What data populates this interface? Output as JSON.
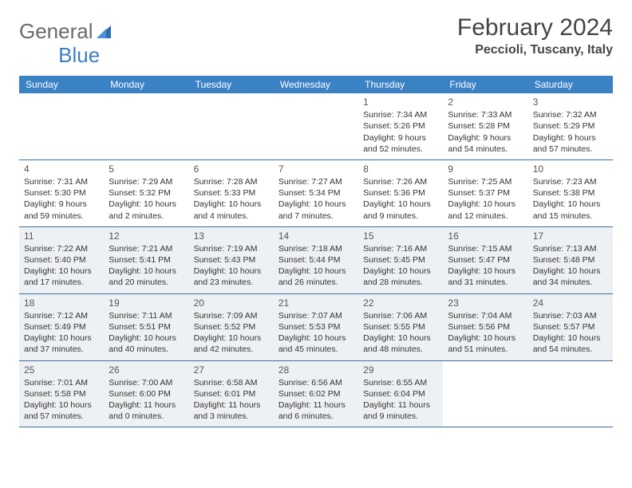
{
  "logo": {
    "text1": "General",
    "text2": "Blue"
  },
  "title": "February 2024",
  "location": "Peccioli, Tuscany, Italy",
  "colors": {
    "header_bg": "#3b82c4",
    "header_text": "#ffffff",
    "border": "#3b6fa0",
    "shaded": "#eef1f3",
    "logo_gray": "#6a6a6a",
    "logo_blue": "#3b7fc4"
  },
  "day_names": [
    "Sunday",
    "Monday",
    "Tuesday",
    "Wednesday",
    "Thursday",
    "Friday",
    "Saturday"
  ],
  "weeks": [
    [
      {
        "blank": true
      },
      {
        "blank": true
      },
      {
        "blank": true
      },
      {
        "blank": true
      },
      {
        "day": "1",
        "sunrise": "Sunrise: 7:34 AM",
        "sunset": "Sunset: 5:26 PM",
        "dl1": "Daylight: 9 hours",
        "dl2": "and 52 minutes."
      },
      {
        "day": "2",
        "sunrise": "Sunrise: 7:33 AM",
        "sunset": "Sunset: 5:28 PM",
        "dl1": "Daylight: 9 hours",
        "dl2": "and 54 minutes."
      },
      {
        "day": "3",
        "sunrise": "Sunrise: 7:32 AM",
        "sunset": "Sunset: 5:29 PM",
        "dl1": "Daylight: 9 hours",
        "dl2": "and 57 minutes."
      }
    ],
    [
      {
        "day": "4",
        "sunrise": "Sunrise: 7:31 AM",
        "sunset": "Sunset: 5:30 PM",
        "dl1": "Daylight: 9 hours",
        "dl2": "and 59 minutes."
      },
      {
        "day": "5",
        "sunrise": "Sunrise: 7:29 AM",
        "sunset": "Sunset: 5:32 PM",
        "dl1": "Daylight: 10 hours",
        "dl2": "and 2 minutes."
      },
      {
        "day": "6",
        "sunrise": "Sunrise: 7:28 AM",
        "sunset": "Sunset: 5:33 PM",
        "dl1": "Daylight: 10 hours",
        "dl2": "and 4 minutes."
      },
      {
        "day": "7",
        "sunrise": "Sunrise: 7:27 AM",
        "sunset": "Sunset: 5:34 PM",
        "dl1": "Daylight: 10 hours",
        "dl2": "and 7 minutes."
      },
      {
        "day": "8",
        "sunrise": "Sunrise: 7:26 AM",
        "sunset": "Sunset: 5:36 PM",
        "dl1": "Daylight: 10 hours",
        "dl2": "and 9 minutes."
      },
      {
        "day": "9",
        "sunrise": "Sunrise: 7:25 AM",
        "sunset": "Sunset: 5:37 PM",
        "dl1": "Daylight: 10 hours",
        "dl2": "and 12 minutes."
      },
      {
        "day": "10",
        "sunrise": "Sunrise: 7:23 AM",
        "sunset": "Sunset: 5:38 PM",
        "dl1": "Daylight: 10 hours",
        "dl2": "and 15 minutes."
      }
    ],
    [
      {
        "day": "11",
        "shaded": true,
        "sunrise": "Sunrise: 7:22 AM",
        "sunset": "Sunset: 5:40 PM",
        "dl1": "Daylight: 10 hours",
        "dl2": "and 17 minutes."
      },
      {
        "day": "12",
        "shaded": true,
        "sunrise": "Sunrise: 7:21 AM",
        "sunset": "Sunset: 5:41 PM",
        "dl1": "Daylight: 10 hours",
        "dl2": "and 20 minutes."
      },
      {
        "day": "13",
        "shaded": true,
        "sunrise": "Sunrise: 7:19 AM",
        "sunset": "Sunset: 5:43 PM",
        "dl1": "Daylight: 10 hours",
        "dl2": "and 23 minutes."
      },
      {
        "day": "14",
        "shaded": true,
        "sunrise": "Sunrise: 7:18 AM",
        "sunset": "Sunset: 5:44 PM",
        "dl1": "Daylight: 10 hours",
        "dl2": "and 26 minutes."
      },
      {
        "day": "15",
        "shaded": true,
        "sunrise": "Sunrise: 7:16 AM",
        "sunset": "Sunset: 5:45 PM",
        "dl1": "Daylight: 10 hours",
        "dl2": "and 28 minutes."
      },
      {
        "day": "16",
        "shaded": true,
        "sunrise": "Sunrise: 7:15 AM",
        "sunset": "Sunset: 5:47 PM",
        "dl1": "Daylight: 10 hours",
        "dl2": "and 31 minutes."
      },
      {
        "day": "17",
        "shaded": true,
        "sunrise": "Sunrise: 7:13 AM",
        "sunset": "Sunset: 5:48 PM",
        "dl1": "Daylight: 10 hours",
        "dl2": "and 34 minutes."
      }
    ],
    [
      {
        "day": "18",
        "shaded": true,
        "sunrise": "Sunrise: 7:12 AM",
        "sunset": "Sunset: 5:49 PM",
        "dl1": "Daylight: 10 hours",
        "dl2": "and 37 minutes."
      },
      {
        "day": "19",
        "shaded": true,
        "sunrise": "Sunrise: 7:11 AM",
        "sunset": "Sunset: 5:51 PM",
        "dl1": "Daylight: 10 hours",
        "dl2": "and 40 minutes."
      },
      {
        "day": "20",
        "shaded": true,
        "sunrise": "Sunrise: 7:09 AM",
        "sunset": "Sunset: 5:52 PM",
        "dl1": "Daylight: 10 hours",
        "dl2": "and 42 minutes."
      },
      {
        "day": "21",
        "shaded": true,
        "sunrise": "Sunrise: 7:07 AM",
        "sunset": "Sunset: 5:53 PM",
        "dl1": "Daylight: 10 hours",
        "dl2": "and 45 minutes."
      },
      {
        "day": "22",
        "shaded": true,
        "sunrise": "Sunrise: 7:06 AM",
        "sunset": "Sunset: 5:55 PM",
        "dl1": "Daylight: 10 hours",
        "dl2": "and 48 minutes."
      },
      {
        "day": "23",
        "shaded": true,
        "sunrise": "Sunrise: 7:04 AM",
        "sunset": "Sunset: 5:56 PM",
        "dl1": "Daylight: 10 hours",
        "dl2": "and 51 minutes."
      },
      {
        "day": "24",
        "shaded": true,
        "sunrise": "Sunrise: 7:03 AM",
        "sunset": "Sunset: 5:57 PM",
        "dl1": "Daylight: 10 hours",
        "dl2": "and 54 minutes."
      }
    ],
    [
      {
        "day": "25",
        "shaded": true,
        "sunrise": "Sunrise: 7:01 AM",
        "sunset": "Sunset: 5:58 PM",
        "dl1": "Daylight: 10 hours",
        "dl2": "and 57 minutes."
      },
      {
        "day": "26",
        "shaded": true,
        "sunrise": "Sunrise: 7:00 AM",
        "sunset": "Sunset: 6:00 PM",
        "dl1": "Daylight: 11 hours",
        "dl2": "and 0 minutes."
      },
      {
        "day": "27",
        "shaded": true,
        "sunrise": "Sunrise: 6:58 AM",
        "sunset": "Sunset: 6:01 PM",
        "dl1": "Daylight: 11 hours",
        "dl2": "and 3 minutes."
      },
      {
        "day": "28",
        "shaded": true,
        "sunrise": "Sunrise: 6:56 AM",
        "sunset": "Sunset: 6:02 PM",
        "dl1": "Daylight: 11 hours",
        "dl2": "and 6 minutes."
      },
      {
        "day": "29",
        "shaded": true,
        "sunrise": "Sunrise: 6:55 AM",
        "sunset": "Sunset: 6:04 PM",
        "dl1": "Daylight: 11 hours",
        "dl2": "and 9 minutes."
      },
      {
        "blank": true
      },
      {
        "blank": true
      }
    ]
  ]
}
